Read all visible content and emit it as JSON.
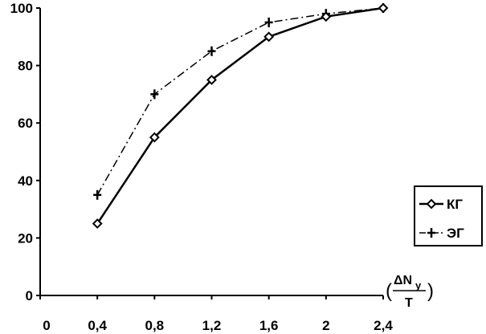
{
  "chart_data": {
    "type": "line",
    "x": [
      0.4,
      0.8,
      1.2,
      1.6,
      2,
      2.4
    ],
    "x_tick_values": [
      0,
      0.4,
      0.8,
      1.2,
      1.6,
      2,
      2.4
    ],
    "x_tick_labels": [
      "0",
      "0,4",
      "0,8",
      "1,2",
      "1,6",
      "2",
      "2,4"
    ],
    "xlim": [
      0,
      2.4
    ],
    "y_tick_values": [
      0,
      20,
      40,
      60,
      80,
      100
    ],
    "y_tick_labels": [
      "0",
      "20",
      "40",
      "60",
      "80",
      "100"
    ],
    "ylim": [
      0,
      100
    ],
    "x_unit": {
      "paren_open": "(",
      "numerator": "ΔN",
      "subscript": "у",
      "denominator": "T",
      "paren_close": ")"
    },
    "series": [
      {
        "name": "КГ",
        "values": [
          25,
          55,
          75,
          90,
          97,
          100
        ],
        "marker": "diamond",
        "line": "solid",
        "color": "#000000"
      },
      {
        "name": "ЭГ",
        "values": [
          35,
          70,
          85,
          95,
          98,
          100
        ],
        "marker": "plus",
        "line": "dashed",
        "color": "#000000"
      }
    ],
    "grid": false,
    "legend_position": "right"
  }
}
